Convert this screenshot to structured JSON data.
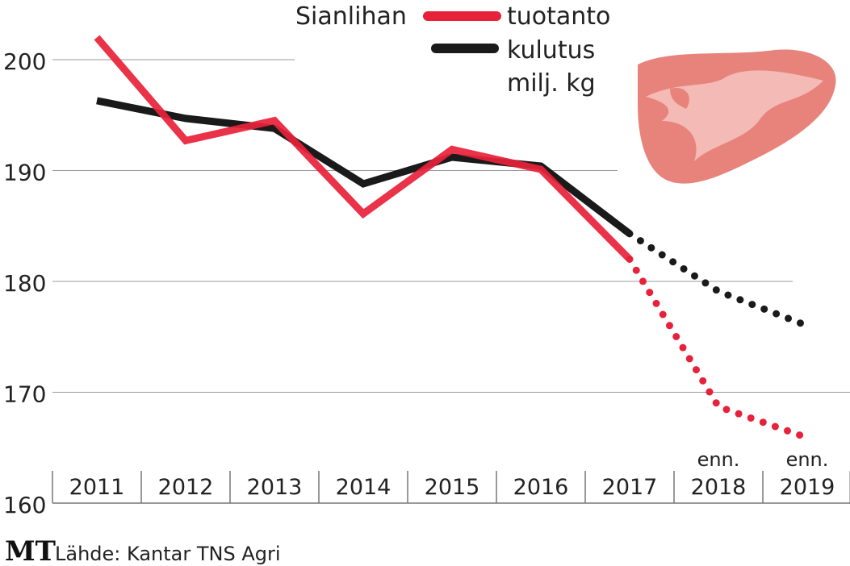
{
  "chart_data": {
    "type": "line",
    "title": "Sianlihan",
    "unit": "milj. kg",
    "categories": [
      "2011",
      "2012",
      "2013",
      "2014",
      "2015",
      "2016",
      "2017",
      "2018",
      "2019"
    ],
    "forecast_label": "enn.",
    "forecast_from_index": 7,
    "yticks": [
      160,
      170,
      180,
      190,
      200
    ],
    "ylim": [
      160,
      204
    ],
    "series": [
      {
        "name": "tuotanto",
        "color": "#e8213a",
        "values": [
          202.0,
          192.7,
          194.5,
          186.1,
          191.9,
          190.1,
          182.0,
          168.7,
          165.9
        ]
      },
      {
        "name": "kulutus",
        "color": "#1a1a1a",
        "values": [
          196.3,
          194.7,
          193.8,
          188.8,
          191.2,
          190.4,
          184.3,
          179.1,
          176.0
        ]
      }
    ],
    "source": "Lähde: Kantar TNS Agri",
    "logo": "MT"
  }
}
